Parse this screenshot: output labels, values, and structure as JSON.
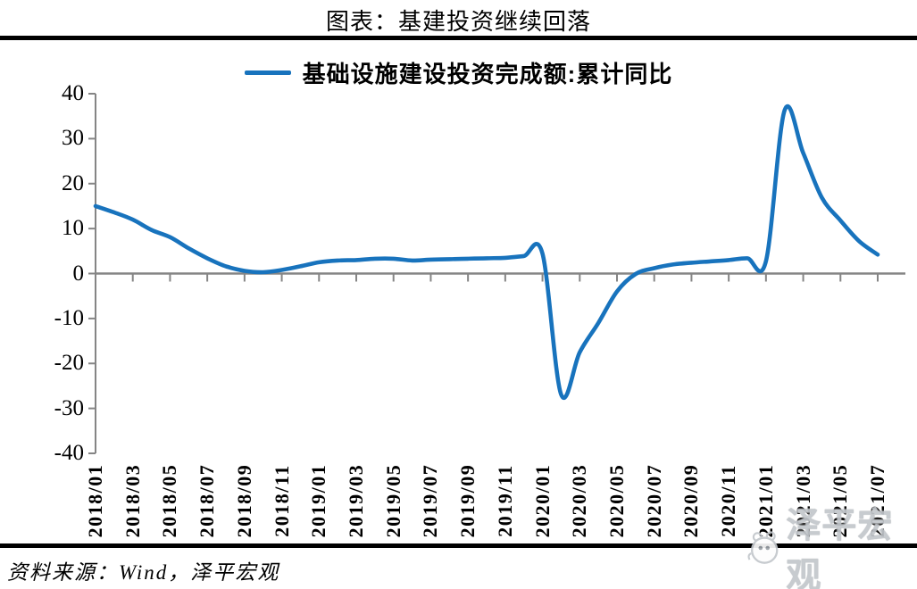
{
  "title": "图表：基建投资继续回落",
  "legend": {
    "label": "基础设施建设投资完成额:累计同比",
    "marker_color": "#1873bd"
  },
  "source": "资料来源：Wind，泽平宏观",
  "watermark": {
    "text": "泽平宏观",
    "icon": "mascot-face-icon"
  },
  "colors": {
    "line": "#1873bd",
    "axis": "#858585",
    "rule": "#000000",
    "watermark": "#c3c7cc"
  },
  "chart_data": {
    "type": "line",
    "title": "图表：基建投资继续回落",
    "xlabel": "",
    "ylabel": "",
    "ylim": [
      -40,
      40
    ],
    "y_ticks": [
      40,
      30,
      20,
      10,
      0,
      -10,
      -20,
      -30,
      -40
    ],
    "grid": false,
    "legend_position": "top",
    "zero_axis_line": true,
    "x_label_rotation": 90,
    "categories": [
      "2018/01",
      "2018/02",
      "2018/03",
      "2018/04",
      "2018/05",
      "2018/06",
      "2018/07",
      "2018/08",
      "2018/09",
      "2018/10",
      "2018/11",
      "2018/12",
      "2019/01",
      "2019/02",
      "2019/03",
      "2019/04",
      "2019/05",
      "2019/06",
      "2019/07",
      "2019/08",
      "2019/09",
      "2019/10",
      "2019/11",
      "2019/12",
      "2020/01",
      "2020/02",
      "2020/03",
      "2020/04",
      "2020/05",
      "2020/06",
      "2020/07",
      "2020/08",
      "2020/09",
      "2020/10",
      "2020/11",
      "2020/12",
      "2021/01",
      "2021/02",
      "2021/03",
      "2021/04",
      "2021/05",
      "2021/06",
      "2021/07"
    ],
    "x_tick_labels": [
      "2018/01",
      "2018/03",
      "2018/05",
      "2018/07",
      "2018/09",
      "2018/11",
      "2019/01",
      "2019/03",
      "2019/05",
      "2019/07",
      "2019/09",
      "2019/11",
      "2020/01",
      "2020/03",
      "2020/05",
      "2020/07",
      "2020/09",
      "2020/11",
      "2021/01",
      "2021/03",
      "2021/05",
      "2021/07"
    ],
    "series": [
      {
        "name": "基础设施建设投资完成额:累计同比",
        "color": "#1873bd",
        "values": [
          15.0,
          13.6,
          12.0,
          9.7,
          8.1,
          5.6,
          3.4,
          1.6,
          0.6,
          0.3,
          0.8,
          1.6,
          2.5,
          2.9,
          3.0,
          3.3,
          3.3,
          2.9,
          3.1,
          3.2,
          3.3,
          3.4,
          3.5,
          3.9,
          4.4,
          -26.9,
          -17.5,
          -11.0,
          -4.0,
          -0.1,
          1.2,
          2.0,
          2.4,
          2.7,
          3.0,
          3.4,
          2.8,
          36.3,
          26.8,
          16.9,
          11.8,
          7.2,
          4.2
        ]
      }
    ]
  }
}
